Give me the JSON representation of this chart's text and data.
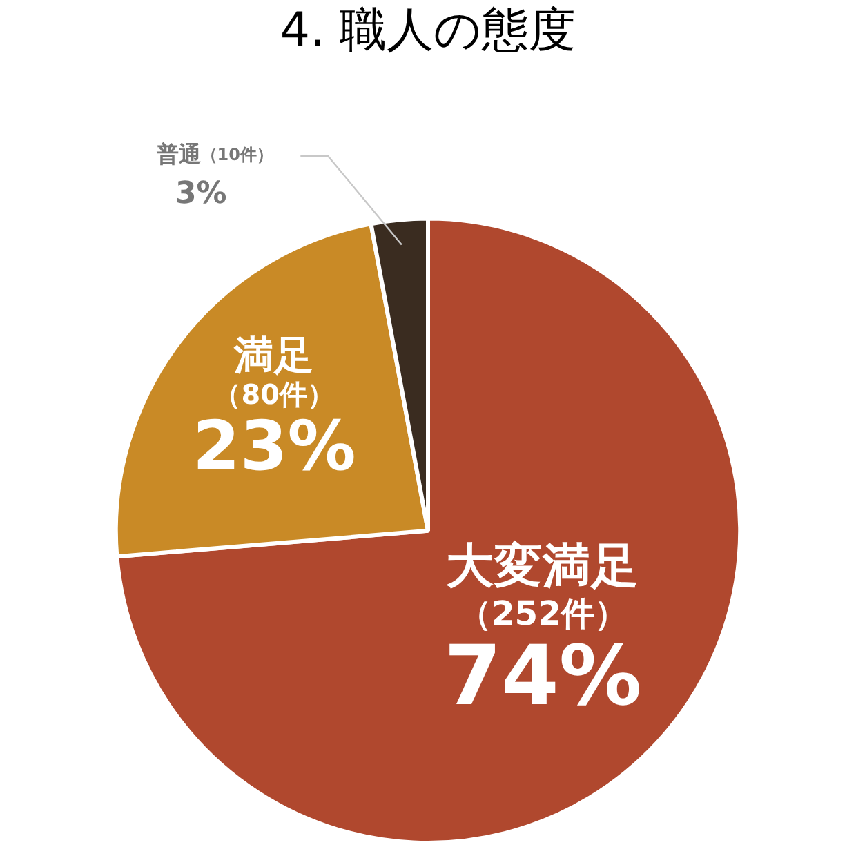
{
  "chart_data": {
    "type": "pie",
    "title": "4. 職人の態度",
    "categories": [
      "大変満足",
      "満足",
      "普通"
    ],
    "values": [
      252,
      80,
      10
    ],
    "colors": [
      "#b0482e",
      "#c98a26",
      "#3a2c20"
    ],
    "value_labels": [
      "（252件）\n74%",
      "（80件）\n23%",
      "（10件）\n3%"
    ],
    "legend": false
  }
}
